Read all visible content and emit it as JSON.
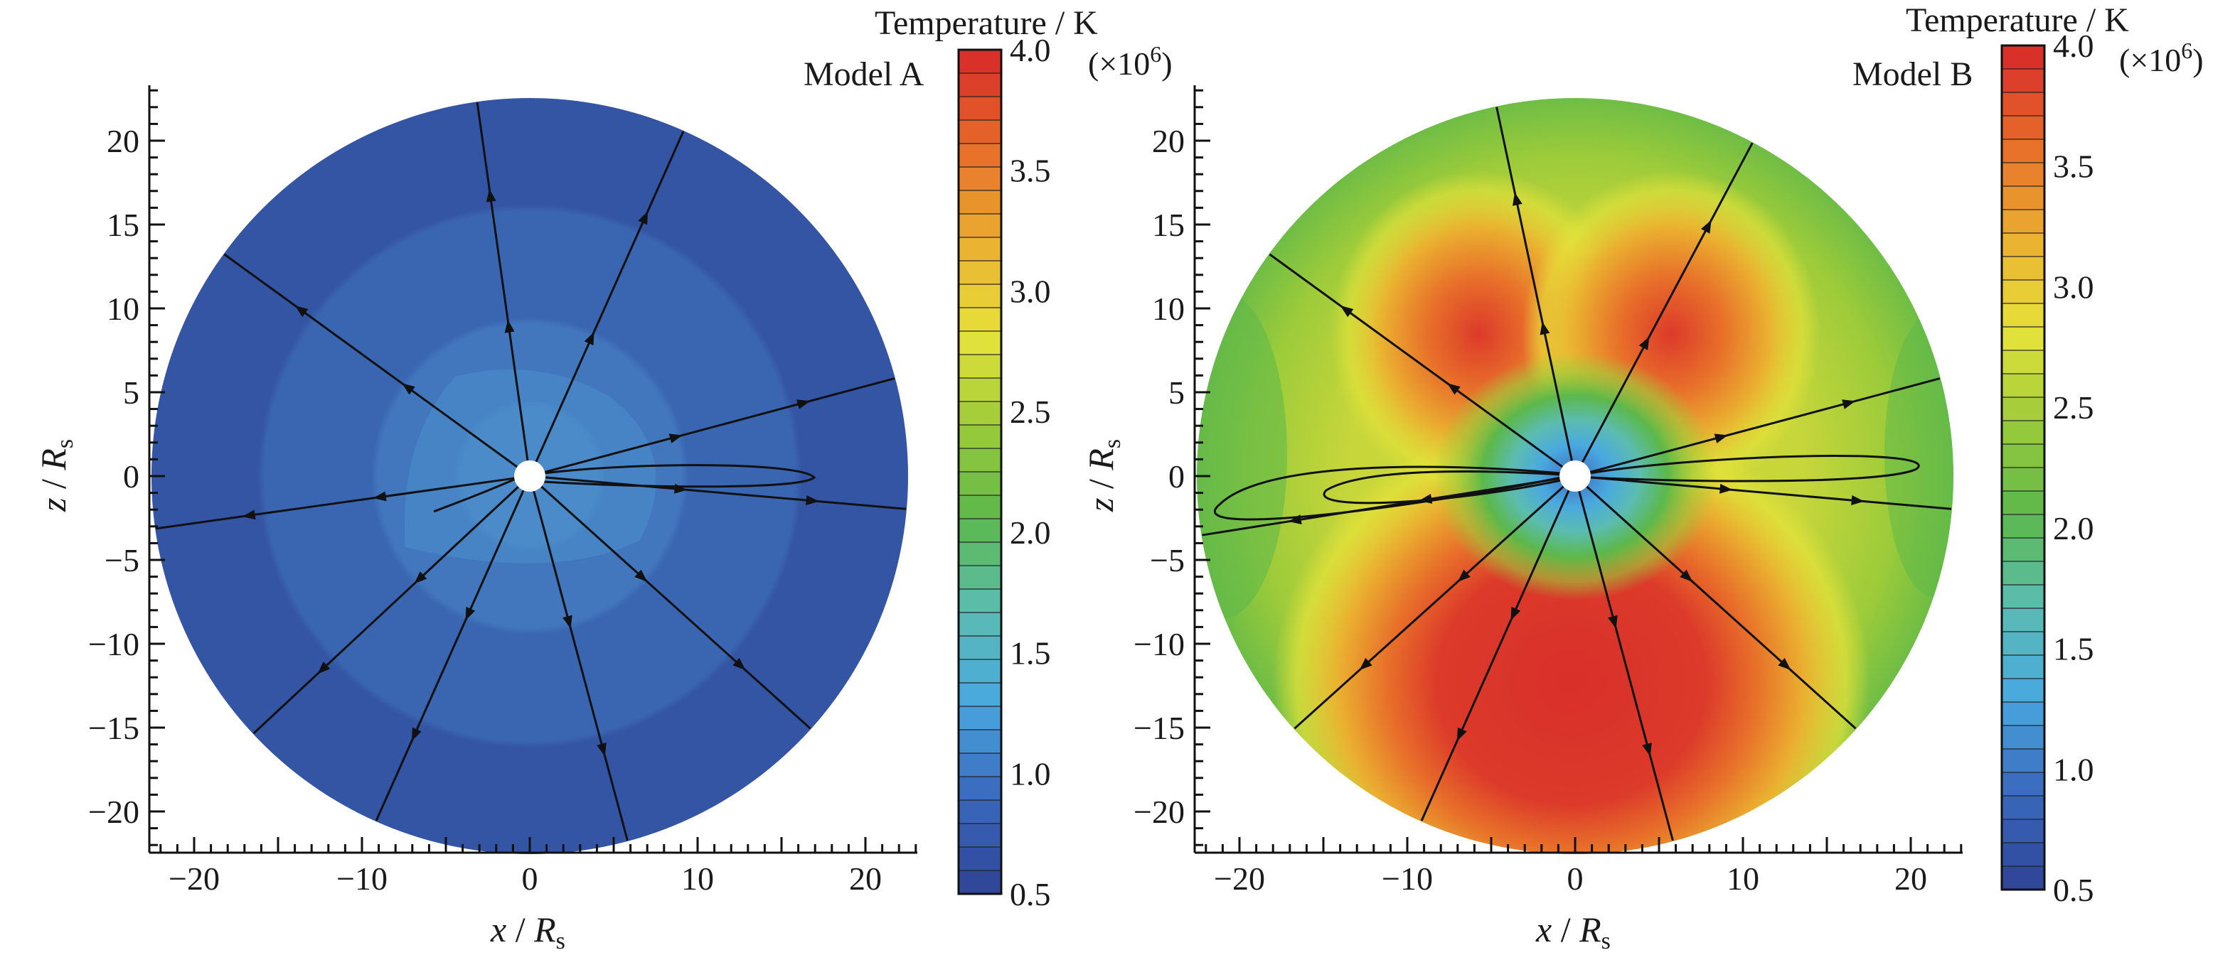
{
  "chart_data": [
    {
      "type": "heatmap",
      "panel": "left",
      "title": "Model A",
      "xlabel_var": "x",
      "ylabel_var": "z",
      "unit_base": "R",
      "unit_sub": "s",
      "xlim": [
        -23,
        23
      ],
      "ylim": [
        -23,
        23
      ],
      "xticks": [
        -20,
        -15,
        -10,
        -5,
        0,
        5,
        10,
        15,
        20
      ],
      "xtick_labels": [
        "−20",
        "",
        "−10",
        "",
        "0",
        "",
        "10",
        "",
        "20"
      ],
      "yticks": [
        -20,
        -15,
        -10,
        -5,
        0,
        5,
        10,
        15,
        20
      ],
      "ytick_labels": [
        "−20",
        "−15",
        "−10",
        "−5",
        "0",
        "5",
        "10",
        "15",
        "20"
      ],
      "domain_radius": 22.5,
      "inner_radius": 1,
      "temperature_field_K": {
        "description_levels": [
          0.5,
          4.0
        ],
        "regions": [
          {
            "zone": "outer",
            "r_range": [
              16,
              22.5
            ],
            "T_MK": 0.55
          },
          {
            "zone": "middle",
            "r_range": [
              9,
              16
            ],
            "T_MK": 0.65
          },
          {
            "zone": "inner",
            "r_range": [
              1,
              9
            ],
            "T_MK": 0.85
          }
        ]
      },
      "field_line_angles_deg": [
        98,
        66,
        15,
        144,
        188,
        223,
        246,
        285,
        318,
        355
      ]
    },
    {
      "type": "heatmap",
      "panel": "right",
      "title": "Model B",
      "xlabel_var": "x",
      "ylabel_var": "z",
      "unit_base": "R",
      "unit_sub": "s",
      "xlim": [
        -23,
        23
      ],
      "ylim": [
        -23,
        23
      ],
      "xticks": [
        -20,
        -15,
        -10,
        -5,
        0,
        5,
        10,
        15,
        20
      ],
      "xtick_labels": [
        "−20",
        "",
        "−10",
        "",
        "0",
        "",
        "10",
        "",
        "20"
      ],
      "yticks": [
        -20,
        -15,
        -10,
        -5,
        0,
        5,
        10,
        15,
        20
      ],
      "ytick_labels": [
        "−20",
        "−15",
        "−10",
        "−5",
        "0",
        "5",
        "10",
        "15",
        "20"
      ],
      "domain_radius": 22.5,
      "inner_radius": 1,
      "temperature_field_K": {
        "description_levels": [
          0.5,
          4.0
        ],
        "features": [
          {
            "zone": "near-sun",
            "r_range": [
              1,
              5
            ],
            "T_MK": 1.0
          },
          {
            "zone": "south-lobe-peak",
            "center": [
              0,
              -12
            ],
            "T_MK": 4.0
          },
          {
            "zone": "north-lobes",
            "centers": [
              [
                -5,
                8
              ],
              [
                5,
                8
              ]
            ],
            "T_MK": 3.8
          },
          {
            "zone": "equatorial-outer",
            "T_MK": 2.6
          }
        ]
      },
      "field_line_angles_deg": [
        102,
        62,
        15,
        144,
        189,
        222,
        246,
        285,
        318,
        355
      ]
    }
  ],
  "colorbar": {
    "title": "Temperature / K",
    "scale_note": "(×10",
    "scale_exp": "6",
    "scale_close": ")",
    "min": 0.5,
    "max": 4.0,
    "levels": 36,
    "tick_values": [
      4.0,
      3.5,
      3.0,
      2.5,
      2.0,
      1.5,
      1.0,
      0.5
    ],
    "tick_labels": [
      "4.0",
      "3.5",
      "3.0",
      "2.5",
      "2.0",
      "1.5",
      "1.0",
      "0.5"
    ],
    "colors": {
      "c0": "#30479a",
      "c1": "#3b6cc0",
      "c2": "#4aa9df",
      "c3": "#5bbcb0",
      "c4": "#5cb84a",
      "c5": "#9ccb3a",
      "c6": "#e6e33a",
      "c7": "#eab030",
      "c8": "#e8702a",
      "c9": "#d9302a"
    }
  }
}
